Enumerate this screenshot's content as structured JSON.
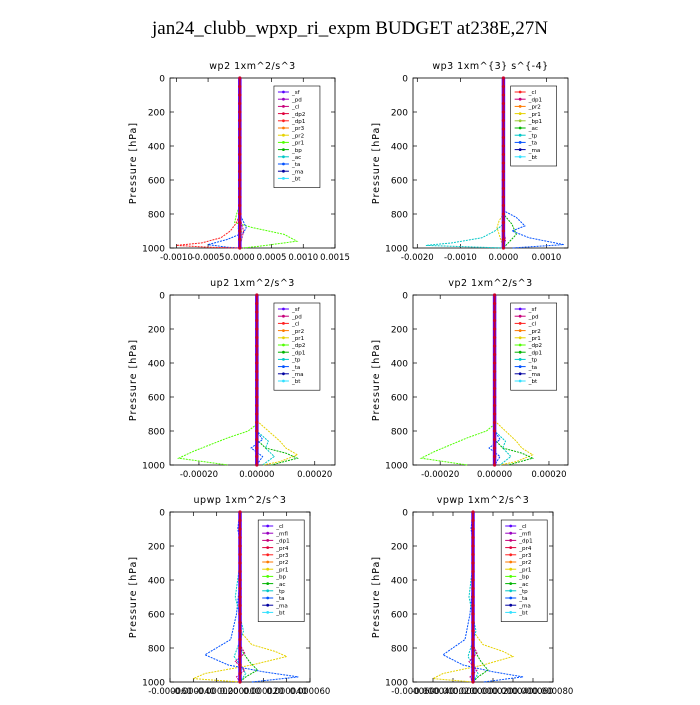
{
  "figure": {
    "title": "jan24_clubb_wpxp_ri_expm  BUDGET at238E,27N"
  },
  "chart_data": [
    {
      "type": "line",
      "title": "wp2   1xm^2/s^3",
      "ylabel": "Pressure [hPa]",
      "ylim": [
        1000,
        0
      ],
      "xlim": [
        -0.0011,
        0.0015
      ],
      "yticks": [
        0,
        200,
        400,
        600,
        800,
        1000
      ],
      "xticks": [
        "-0.0010",
        "-0.0005",
        "0.0000",
        "0.0005",
        "0.0010",
        "0.0015"
      ],
      "xtick_values": [
        -0.001,
        -0.0005,
        0,
        0.0005,
        0.001,
        0.0015
      ],
      "legend": [
        "_sf",
        "_pd",
        "_cl",
        "_dp2",
        "_dp1",
        "_pr3",
        "_pr2",
        "_pr1",
        "_bp",
        "_ac",
        "_ta",
        "_ma",
        "_bt"
      ],
      "series_colors": [
        "#5a00ff",
        "#9a00c0",
        "#c8007a",
        "#e0003c",
        "#ff2020",
        "#ff7a00",
        "#e6d200",
        "#50ff00",
        "#00b400",
        "#00c8c8",
        "#0050ff",
        "#0000a0",
        "#30e0ff"
      ],
      "series": [
        {
          "name": "_pr1",
          "color": "#50ff00",
          "x": [
            0,
            0,
            -5e-05,
            -8e-05,
            0.0002,
            0.0007,
            0.0009,
            0.0003,
            5e-05
          ],
          "y": [
            0,
            750,
            800,
            850,
            880,
            920,
            960,
            990,
            1000
          ]
        },
        {
          "name": "_ta",
          "color": "#0050ff",
          "x": [
            0,
            0,
            5e-05,
            0.0001,
            6e-05,
            -0.0002,
            -0.0005,
            -0.0002,
            0
          ],
          "y": [
            0,
            800,
            840,
            880,
            910,
            950,
            980,
            995,
            1000
          ]
        },
        {
          "name": "_dp1",
          "color": "#ff2020",
          "x": [
            0,
            0,
            -5e-05,
            -0.00015,
            -0.0003,
            -0.0006,
            -0.001,
            -0.0005,
            0
          ],
          "y": [
            0,
            800,
            850,
            900,
            940,
            970,
            985,
            995,
            1000
          ]
        },
        {
          "name": "_cl",
          "color": "#c8007a",
          "x": [
            0,
            0,
            3e-05,
            6e-05,
            3e-05,
            0
          ],
          "y": [
            0,
            820,
            860,
            900,
            950,
            1000
          ]
        },
        {
          "name": "_pr2",
          "color": "#e6d200",
          "x": [
            0,
            0,
            3e-05,
            2e-05,
            0
          ],
          "y": [
            0,
            850,
            900,
            960,
            1000
          ]
        },
        {
          "name": "_bt",
          "color": "#30e0ff",
          "x": [
            0,
            0,
            -3e-05,
            3e-05,
            0
          ],
          "y": [
            0,
            840,
            880,
            940,
            1000
          ]
        }
      ]
    },
    {
      "type": "line",
      "title": "wp3   1xm^{3} s^{-4}",
      "ylabel": "Pressure [hPa]",
      "ylim": [
        1000,
        0
      ],
      "xlim": [
        -0.0021,
        0.0015
      ],
      "yticks": [
        0,
        200,
        400,
        600,
        800,
        1000
      ],
      "xticks": [
        "-0.0020",
        "-0.0010",
        "0.0000",
        "0.0010"
      ],
      "xtick_values": [
        -0.002,
        -0.001,
        0,
        0.001
      ],
      "legend": [
        "_cl",
        "_dp1",
        "_pr2",
        "_pr1",
        "_bp1",
        "_ac",
        "_tp",
        "_ta",
        "_ma",
        "_bt"
      ],
      "series_colors": [
        "#ff2020",
        "#c8007a",
        "#ff7a00",
        "#e6d200",
        "#9acd32",
        "#00b400",
        "#00c8c8",
        "#0050ff",
        "#0000a0",
        "#30e0ff"
      ],
      "series": [
        {
          "name": "_ta",
          "color": "#0050ff",
          "x": [
            0,
            0,
            0.0003,
            0.0005,
            0.0002,
            0.0006,
            0.0014,
            0.0002
          ],
          "y": [
            0,
            780,
            820,
            870,
            900,
            940,
            980,
            1000
          ]
        },
        {
          "name": "_tp",
          "color": "#00c8c8",
          "x": [
            0,
            0,
            -0.0002,
            -0.0005,
            -0.0012,
            -0.0018,
            0
          ],
          "y": [
            0,
            860,
            900,
            940,
            970,
            985,
            1000
          ]
        },
        {
          "name": "_ac",
          "color": "#00b400",
          "x": [
            0,
            0,
            0.0002,
            0.0003,
            0
          ],
          "y": [
            0,
            800,
            860,
            920,
            1000
          ]
        },
        {
          "name": "_pr1",
          "color": "#e6d200",
          "x": [
            0,
            0,
            -0.0001,
            -0.00015,
            0
          ],
          "y": [
            0,
            800,
            840,
            880,
            1000
          ]
        },
        {
          "name": "_dp1",
          "color": "#c8007a",
          "x": [
            0,
            0,
            5e-05,
            0
          ],
          "y": [
            0,
            900,
            950,
            1000
          ]
        }
      ]
    },
    {
      "type": "line",
      "title": "up2   1xm^2/s^3",
      "ylabel": "Pressure [hPa]",
      "ylim": [
        1000,
        0
      ],
      "xlim": [
        -0.0003,
        0.00027
      ],
      "yticks": [
        0,
        200,
        400,
        600,
        800,
        1000
      ],
      "xticks": [
        "-0.00020",
        "0.00000",
        "0.00020"
      ],
      "xtick_values": [
        -0.0002,
        0,
        0.0002
      ],
      "legend": [
        "_sf",
        "_pd",
        "_cl",
        "_pr2",
        "_pr1",
        "_dp2",
        "_dp1",
        "_tp",
        "_ta",
        "_ma",
        "_bt"
      ],
      "series_colors": [
        "#5a00ff",
        "#c8007a",
        "#ff2020",
        "#ff7a00",
        "#e6d200",
        "#50ff00",
        "#00b400",
        "#00c8c8",
        "#0050ff",
        "#0000a0",
        "#30e0ff"
      ],
      "series": [
        {
          "name": "_dp2",
          "color": "#50ff00",
          "x": [
            0,
            0,
            -3e-05,
            -0.0001,
            -0.00016,
            -0.00022,
            -0.00027,
            -0.0001
          ],
          "y": [
            0,
            760,
            800,
            840,
            880,
            920,
            960,
            1000
          ]
        },
        {
          "name": "_pr1",
          "color": "#e6d200",
          "x": [
            0,
            0,
            4e-05,
            8e-05,
            0.0001,
            0.00014,
            8e-05,
            2e-05
          ],
          "y": [
            0,
            740,
            800,
            860,
            900,
            940,
            980,
            1000
          ]
        },
        {
          "name": "_tp",
          "color": "#00c8c8",
          "x": [
            0,
            0,
            4e-05,
            3e-05,
            6e-05,
            2e-05
          ],
          "y": [
            0,
            800,
            860,
            900,
            950,
            1000
          ]
        },
        {
          "name": "_dp1",
          "color": "#00b400",
          "x": [
            0,
            0,
            3e-05,
            0.0001,
            0.00014,
            5e-05
          ],
          "y": [
            0,
            850,
            900,
            930,
            960,
            1000
          ]
        },
        {
          "name": "_ta",
          "color": "#0050ff",
          "x": [
            0,
            0,
            2e-05,
            -2e-05,
            2e-05,
            0
          ],
          "y": [
            0,
            800,
            850,
            900,
            950,
            1000
          ]
        }
      ]
    },
    {
      "type": "line",
      "title": "vp2   1xm^2/s^3",
      "ylabel": "Pressure [hPa]",
      "ylim": [
        1000,
        0
      ],
      "xlim": [
        -0.0003,
        0.00027
      ],
      "yticks": [
        0,
        200,
        400,
        600,
        800,
        1000
      ],
      "xticks": [
        "-0.00020",
        "0.00000",
        "0.00020"
      ],
      "xtick_values": [
        -0.0002,
        0,
        0.0002
      ],
      "legend": [
        "_sf",
        "_pd",
        "_cl",
        "_pr2",
        "_pr1",
        "_dp2",
        "_dp1",
        "_tp",
        "_ta",
        "_ma",
        "_bt"
      ],
      "series_colors": [
        "#5a00ff",
        "#c8007a",
        "#ff2020",
        "#ff7a00",
        "#e6d200",
        "#50ff00",
        "#00b400",
        "#00c8c8",
        "#0050ff",
        "#0000a0",
        "#30e0ff"
      ],
      "series": [
        {
          "name": "_dp2",
          "color": "#50ff00",
          "x": [
            0,
            0,
            -3e-05,
            -0.0001,
            -0.00016,
            -0.00022,
            -0.00027,
            -0.0001
          ],
          "y": [
            0,
            760,
            800,
            840,
            880,
            920,
            960,
            1000
          ]
        },
        {
          "name": "_pr1",
          "color": "#e6d200",
          "x": [
            0,
            0,
            4e-05,
            8e-05,
            0.0001,
            0.00014,
            8e-05,
            2e-05
          ],
          "y": [
            0,
            740,
            800,
            860,
            900,
            940,
            980,
            1000
          ]
        },
        {
          "name": "_tp",
          "color": "#00c8c8",
          "x": [
            0,
            0,
            4e-05,
            3e-05,
            6e-05,
            2e-05
          ],
          "y": [
            0,
            800,
            860,
            900,
            950,
            1000
          ]
        },
        {
          "name": "_dp1",
          "color": "#00b400",
          "x": [
            0,
            0,
            3e-05,
            0.0001,
            0.00014,
            5e-05
          ],
          "y": [
            0,
            850,
            900,
            930,
            960,
            1000
          ]
        },
        {
          "name": "_ta",
          "color": "#0050ff",
          "x": [
            0,
            0,
            2e-05,
            -2e-05,
            2e-05,
            0
          ],
          "y": [
            0,
            800,
            850,
            900,
            950,
            1000
          ]
        }
      ]
    },
    {
      "type": "line",
      "title": "upwp   1xm^2/s^3",
      "ylabel": "Pressure [hPa]",
      "ylim": [
        1000,
        0
      ],
      "xlim": [
        -6e-05,
        6e-05
      ],
      "yticks": [
        0,
        200,
        400,
        600,
        800,
        1000
      ],
      "xticks": [
        "-0.000060",
        "-0.000040",
        "-0.000020",
        "0.000000",
        "0.000020",
        "0.000040",
        "0.000060"
      ],
      "xtick_values": [
        -6e-05,
        -4e-05,
        -2e-05,
        0,
        2e-05,
        4e-05,
        6e-05
      ],
      "legend": [
        "_cl",
        "_mfl",
        "_dp1",
        "_pr4",
        "_pr3",
        "_pr2",
        "_pr1",
        "_bp",
        "_ac",
        "_tp",
        "_ta",
        "_ma",
        "_bt"
      ],
      "series_colors": [
        "#5a00ff",
        "#9a00c0",
        "#c8007a",
        "#e0003c",
        "#ff2020",
        "#ff7a00",
        "#e6d200",
        "#50ff00",
        "#00b400",
        "#00c8c8",
        "#0050ff",
        "#0000a0",
        "#30e0ff"
      ],
      "series": [
        {
          "name": "_ta",
          "color": "#0050ff",
          "x": [
            0,
            -2e-06,
            1e-06,
            0,
            -3e-06,
            -8e-06,
            -3e-05,
            -1e-05,
            2e-05,
            5e-05,
            1e-05
          ],
          "y": [
            0,
            100,
            200,
            400,
            600,
            750,
            840,
            900,
            940,
            970,
            1000
          ]
        },
        {
          "name": "_pr1",
          "color": "#e6d200",
          "x": [
            0,
            0,
            1e-05,
            3e-05,
            4e-05,
            1e-05,
            -3e-05,
            -4e-05,
            0
          ],
          "y": [
            0,
            700,
            780,
            820,
            850,
            900,
            950,
            980,
            1000
          ]
        },
        {
          "name": "_tp",
          "color": "#00c8c8",
          "x": [
            0,
            0,
            -4e-06,
            3e-06,
            -5e-06,
            5e-06,
            0
          ],
          "y": [
            0,
            300,
            500,
            700,
            850,
            950,
            1000
          ]
        },
        {
          "name": "_ac",
          "color": "#00b400",
          "x": [
            0,
            0,
            8e-06,
            1.5e-05,
            5e-06,
            0
          ],
          "y": [
            0,
            800,
            880,
            930,
            970,
            1000
          ]
        },
        {
          "name": "_dp1",
          "color": "#c8007a",
          "x": [
            0,
            0,
            4e-06,
            -4e-06,
            4e-06,
            -3e-06,
            0
          ],
          "y": [
            0,
            780,
            830,
            880,
            930,
            970,
            1000
          ]
        }
      ]
    },
    {
      "type": "line",
      "title": "vpwp   1xm^2/s^3",
      "ylabel": "Pressure [hPa]",
      "ylim": [
        1000,
        0
      ],
      "xlim": [
        -6e-05,
        8e-05
      ],
      "yticks": [
        0,
        200,
        400,
        600,
        800,
        1000
      ],
      "xticks": [
        "-0.000060",
        "-0.000040",
        "-0.000020",
        "0.000000",
        "0.000020",
        "0.000040",
        "0.000060",
        "0.000080"
      ],
      "xtick_values": [
        -6e-05,
        -4e-05,
        -2e-05,
        0,
        2e-05,
        4e-05,
        6e-05,
        8e-05
      ],
      "legend": [
        "_cl",
        "_mfl",
        "_dp1",
        "_pr4",
        "_pr3",
        "_pr2",
        "_pr1",
        "_bp",
        "_ac",
        "_tp",
        "_ta",
        "_ma",
        "_bt"
      ],
      "series_colors": [
        "#5a00ff",
        "#9a00c0",
        "#c8007a",
        "#e0003c",
        "#ff2020",
        "#ff7a00",
        "#e6d200",
        "#50ff00",
        "#00b400",
        "#00c8c8",
        "#0050ff",
        "#0000a0",
        "#30e0ff"
      ],
      "series": [
        {
          "name": "_ta",
          "color": "#0050ff",
          "x": [
            0,
            -2e-06,
            1e-06,
            0,
            -3e-06,
            -8e-06,
            -3e-05,
            -1e-05,
            2e-05,
            5e-05,
            1e-05
          ],
          "y": [
            0,
            100,
            200,
            400,
            600,
            750,
            840,
            900,
            940,
            970,
            1000
          ]
        },
        {
          "name": "_pr1",
          "color": "#e6d200",
          "x": [
            0,
            0,
            1e-05,
            3e-05,
            4e-05,
            1e-05,
            -3e-05,
            -4e-05,
            0
          ],
          "y": [
            0,
            700,
            780,
            820,
            850,
            900,
            950,
            980,
            1000
          ]
        },
        {
          "name": "_tp",
          "color": "#00c8c8",
          "x": [
            0,
            0,
            -4e-06,
            3e-06,
            -5e-06,
            5e-06,
            0
          ],
          "y": [
            0,
            300,
            500,
            700,
            850,
            950,
            1000
          ]
        },
        {
          "name": "_ac",
          "color": "#00b400",
          "x": [
            0,
            0,
            8e-06,
            1.5e-05,
            5e-06,
            0
          ],
          "y": [
            0,
            800,
            880,
            930,
            970,
            1000
          ]
        },
        {
          "name": "_dp1",
          "color": "#c8007a",
          "x": [
            0,
            0,
            4e-06,
            -4e-06,
            4e-06,
            -3e-06,
            0
          ],
          "y": [
            0,
            780,
            830,
            880,
            930,
            970,
            1000
          ]
        }
      ]
    }
  ]
}
